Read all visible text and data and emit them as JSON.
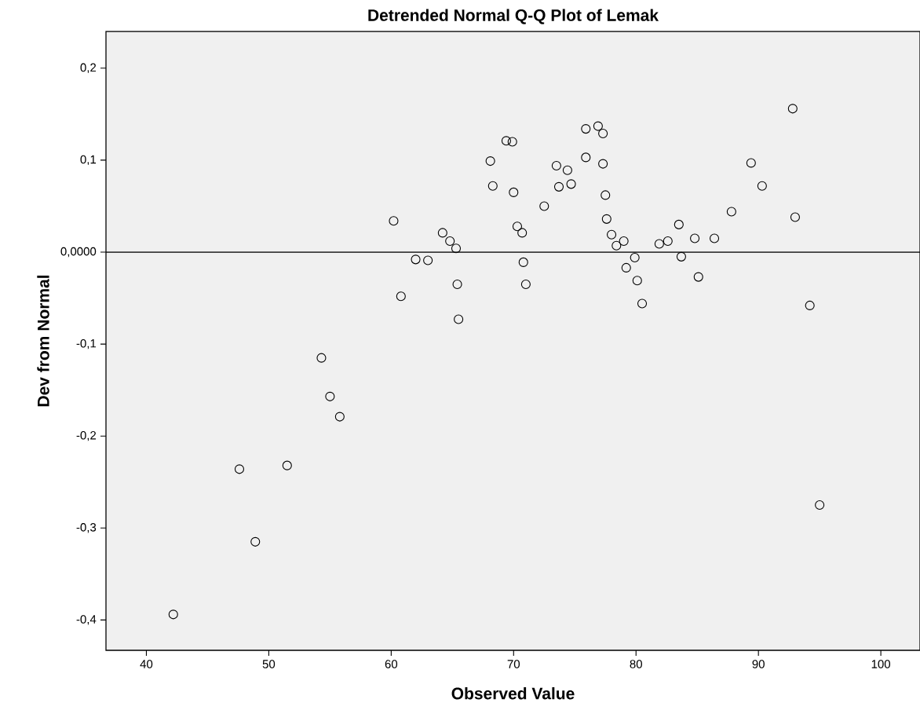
{
  "chart_data": {
    "type": "scatter",
    "title": "Detrended Normal Q-Q Plot of Lemak",
    "xlabel": "Observed Value",
    "ylabel": "Dev from Normal",
    "xlim": [
      36.7,
      103.2
    ],
    "ylim": [
      -0.433,
      0.24
    ],
    "xticks": [
      40,
      50,
      60,
      70,
      80,
      90,
      100
    ],
    "yticks": [
      {
        "value": -0.4,
        "label": "-0,4"
      },
      {
        "value": -0.3,
        "label": "-0,3"
      },
      {
        "value": -0.2,
        "label": "-0,2"
      },
      {
        "value": -0.1,
        "label": "-0,1"
      },
      {
        "value": 0,
        "label": "0,0000"
      },
      {
        "value": 0.1,
        "label": "0,1"
      },
      {
        "value": 0.2,
        "label": "0,2"
      }
    ],
    "marker": "circle",
    "grid": false,
    "ref_lines": [
      {
        "axis": "y",
        "value": 0,
        "color": "#000000"
      }
    ],
    "series": [
      {
        "color": "#000000",
        "x": [
          42.2,
          47.6,
          48.9,
          51.5,
          54.3,
          55.0,
          55.8,
          60.2,
          60.8,
          62.0,
          63.0,
          64.2,
          64.8,
          65.3,
          65.4,
          65.5,
          68.1,
          68.3,
          69.4,
          69.9,
          70.0,
          70.3,
          70.7,
          70.8,
          71.0,
          72.5,
          73.5,
          73.7,
          74.4,
          74.7,
          75.9,
          75.9,
          76.9,
          77.3,
          77.3,
          77.5,
          77.6,
          78.0,
          78.4,
          79.0,
          79.2,
          79.9,
          80.1,
          80.5,
          81.9,
          82.6,
          83.5,
          83.7,
          84.8,
          85.1,
          86.4,
          87.8,
          89.4,
          90.3,
          92.8,
          93.0,
          94.2,
          95.0
        ],
        "values": [
          -0.394,
          -0.236,
          -0.315,
          -0.232,
          -0.115,
          -0.157,
          -0.179,
          0.034,
          -0.048,
          -0.008,
          -0.009,
          0.021,
          0.012,
          0.004,
          -0.035,
          -0.073,
          0.099,
          0.072,
          0.121,
          0.12,
          0.065,
          0.028,
          0.021,
          -0.011,
          -0.035,
          0.05,
          0.094,
          0.071,
          0.089,
          0.074,
          0.134,
          0.103,
          0.137,
          0.129,
          0.096,
          0.062,
          0.036,
          0.019,
          0.007,
          0.012,
          -0.017,
          -0.006,
          -0.031,
          -0.056,
          0.009,
          0.012,
          0.03,
          -0.005,
          0.015,
          -0.027,
          0.015,
          0.044,
          0.097,
          0.072,
          0.156,
          0.038,
          -0.058,
          -0.275
        ]
      }
    ]
  }
}
